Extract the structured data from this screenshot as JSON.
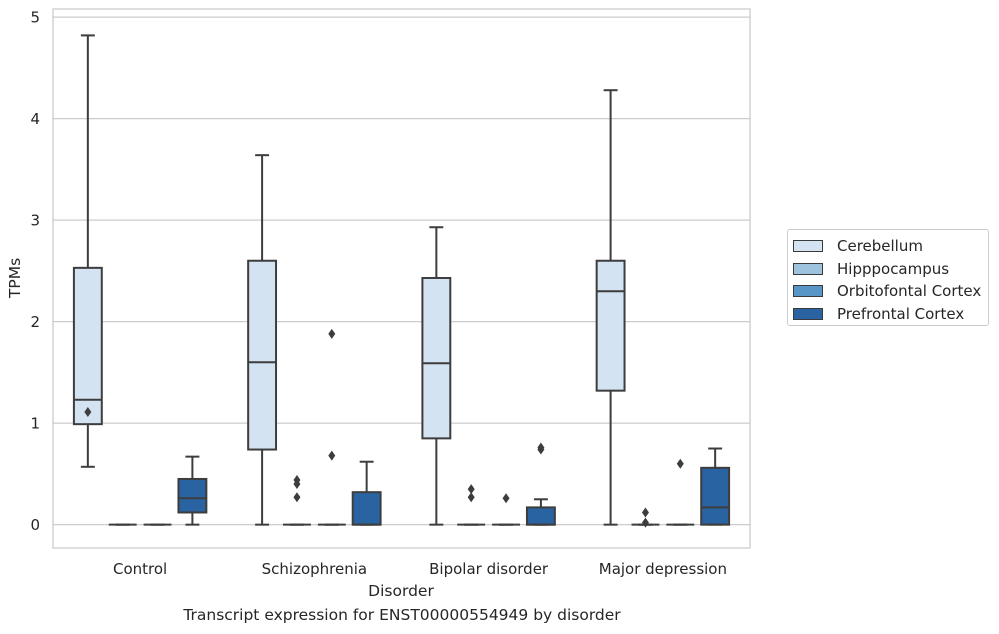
{
  "chart_data": {
    "type": "box",
    "title": "Transcript expression for ENST00000554949 by disorder",
    "xlabel": "Disorder",
    "ylabel": "TPMs",
    "ylim": [
      -0.23,
      5.08
    ],
    "yticks": [
      0,
      1,
      2,
      3,
      4,
      5
    ],
    "grid": true,
    "legend_position": "right",
    "categories": [
      "Control",
      "Schizophrenia",
      "Bipolar disorder",
      "Major depression"
    ],
    "series": [
      {
        "name": "Cerebellum",
        "color": "#d3e3f2",
        "boxes": [
          {
            "min": 0.57,
            "q1": 0.99,
            "median": 1.23,
            "q3": 2.53,
            "max": 4.82,
            "outliers": [
              1.11
            ]
          },
          {
            "min": 0.0,
            "q1": 0.74,
            "median": 1.6,
            "q3": 2.6,
            "max": 3.64,
            "outliers": []
          },
          {
            "min": 0.0,
            "q1": 0.85,
            "median": 1.59,
            "q3": 2.43,
            "max": 2.93,
            "outliers": []
          },
          {
            "min": 0.0,
            "q1": 1.32,
            "median": 2.3,
            "q3": 2.6,
            "max": 4.28,
            "outliers": []
          }
        ]
      },
      {
        "name": "Hipppocampus",
        "color": "#9dc3df",
        "boxes": [
          {
            "min": 0.0,
            "q1": 0.0,
            "median": 0.0,
            "q3": 0.0,
            "max": 0.0,
            "outliers": []
          },
          {
            "min": 0.0,
            "q1": 0.0,
            "median": 0.0,
            "q3": 0.0,
            "max": 0.0,
            "outliers": [
              0.27,
              0.4,
              0.44
            ]
          },
          {
            "min": 0.0,
            "q1": 0.0,
            "median": 0.0,
            "q3": 0.0,
            "max": 0.0,
            "outliers": [
              0.27,
              0.35
            ]
          },
          {
            "min": 0.0,
            "q1": 0.0,
            "median": 0.0,
            "q3": 0.0,
            "max": 0.0,
            "outliers": [
              0.02,
              0.12
            ]
          }
        ]
      },
      {
        "name": "Orbitofontal Cortex",
        "color": "#5796c6",
        "boxes": [
          {
            "min": 0.0,
            "q1": 0.0,
            "median": 0.0,
            "q3": 0.0,
            "max": 0.0,
            "outliers": []
          },
          {
            "min": 0.0,
            "q1": 0.0,
            "median": 0.0,
            "q3": 0.0,
            "max": 0.0,
            "outliers": [
              0.68,
              1.88
            ]
          },
          {
            "min": 0.0,
            "q1": 0.0,
            "median": 0.0,
            "q3": 0.0,
            "max": 0.0,
            "outliers": [
              0.26
            ]
          },
          {
            "min": 0.0,
            "q1": 0.0,
            "median": 0.0,
            "q3": 0.0,
            "max": 0.0,
            "outliers": [
              0.6
            ]
          }
        ]
      },
      {
        "name": "Prefrontal Cortex",
        "color": "#2a63a2",
        "boxes": [
          {
            "min": 0.0,
            "q1": 0.12,
            "median": 0.26,
            "q3": 0.45,
            "max": 0.67,
            "outliers": []
          },
          {
            "min": 0.0,
            "q1": 0.0,
            "median": 0.0,
            "q3": 0.32,
            "max": 0.62,
            "outliers": []
          },
          {
            "min": 0.0,
            "q1": 0.0,
            "median": 0.0,
            "q3": 0.17,
            "max": 0.25,
            "outliers": [
              0.74,
              0.76
            ]
          },
          {
            "min": 0.0,
            "q1": 0.0,
            "median": 0.17,
            "q3": 0.56,
            "max": 0.75,
            "outliers": []
          }
        ]
      }
    ]
  }
}
